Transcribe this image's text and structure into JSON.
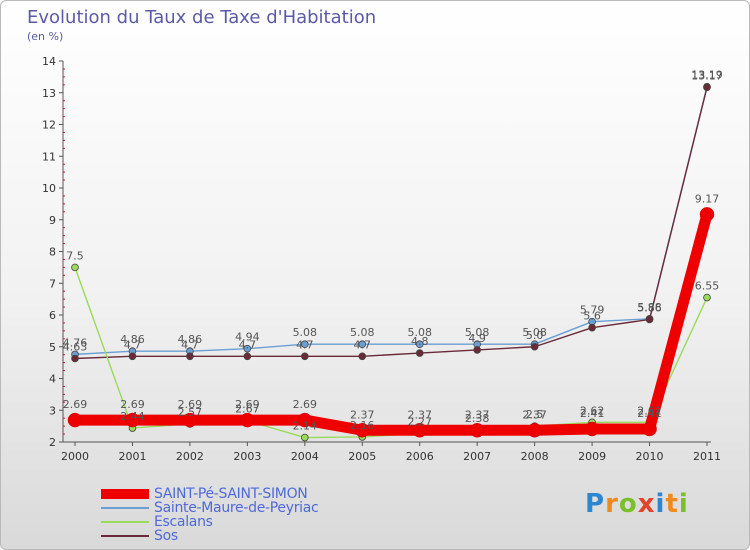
{
  "chart_data": {
    "type": "line",
    "title": "Evolution du Taux de Taxe d'Habitation",
    "unit_label": "(en %)",
    "categories": [
      "2000",
      "2001",
      "2002",
      "2003",
      "2004",
      "2005",
      "2006",
      "2007",
      "2008",
      "2009",
      "2010",
      "2011"
    ],
    "y_ticks": [
      "2",
      "3",
      "4",
      "5",
      "6",
      "7",
      "8",
      "9",
      "10",
      "11",
      "12",
      "13",
      "14"
    ],
    "ylim": [
      2,
      14
    ],
    "series": [
      {
        "name": "SAINT-Pé-SAINT-SIMON",
        "color": "#ee0000",
        "values": [
          2.69,
          2.69,
          2.69,
          2.69,
          2.69,
          2.37,
          2.37,
          2.37,
          2.37,
          2.41,
          2.41,
          9.17
        ],
        "labels": [
          "2.69",
          "2.69",
          "2.69",
          "2.69",
          "2.69",
          "2.37",
          "2.37",
          "2.37",
          "2.37",
          "2.41",
          "2.41",
          "9.17"
        ]
      },
      {
        "name": "Sainte-Maure-de-Peyriac",
        "color": "#6b9fd4",
        "values": [
          4.76,
          4.86,
          4.86,
          4.94,
          5.08,
          5.08,
          5.08,
          5.08,
          5.08,
          5.79,
          5.88,
          13.19
        ],
        "labels": [
          "4.76",
          "4.86",
          "4.86",
          "4.94",
          "5.08",
          "5.08",
          "5.08",
          "5.08",
          "5.08",
          "5.79",
          "5.88",
          "13.19"
        ]
      },
      {
        "name": "Escalans",
        "color": "#9adb5a",
        "values": [
          7.5,
          2.44,
          2.57,
          2.67,
          2.14,
          2.16,
          2.27,
          2.38,
          2.5,
          2.62,
          2.62,
          6.55
        ],
        "labels": [
          "7.5",
          "2.44",
          "2.57",
          "2.67",
          "2.14",
          "2.16",
          "2.27",
          "2.38",
          "2.5",
          "2.62",
          "2.62",
          "6.55"
        ]
      },
      {
        "name": "Sos",
        "color": "#6a2a38",
        "values": [
          4.63,
          4.7,
          4.7,
          4.7,
          4.7,
          4.7,
          4.8,
          4.9,
          5.0,
          5.6,
          5.86,
          13.17
        ],
        "labels": [
          "4.63",
          "4.7",
          "4.7",
          "4.7",
          "4.7",
          "4.7",
          "4.8",
          "4.9",
          "5.0",
          "5.6",
          "5.86",
          "13.17"
        ]
      }
    ]
  },
  "legend": [
    {
      "label": "SAINT-Pé-SAINT-SIMON"
    },
    {
      "label": "Sainte-Maure-de-Peyriac"
    },
    {
      "label": "Escalans"
    },
    {
      "label": "Sos"
    }
  ],
  "brand": {
    "letters": [
      "P",
      "r",
      "o",
      "x",
      "i",
      "t",
      "i"
    ],
    "colors": [
      "#2f86d0",
      "#f08a1e",
      "#7bbf2a",
      "#e0452c",
      "#2f86d0",
      "#f08a1e",
      "#7bbf2a"
    ]
  }
}
